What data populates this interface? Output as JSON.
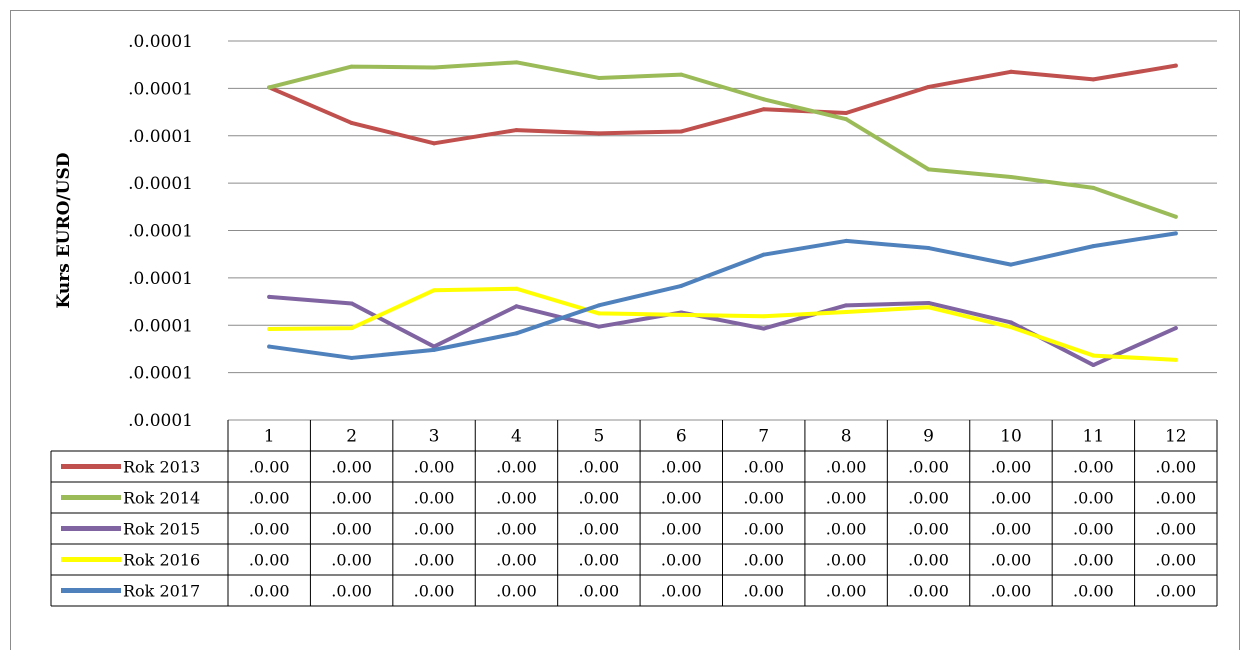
{
  "chart_data": {
    "type": "line",
    "title": "",
    "xlabel": "",
    "ylabel": "Kurs EURO/USD",
    "categories": [
      "1",
      "2",
      "3",
      "4",
      "5",
      "6",
      "7",
      "8",
      "9",
      "10",
      "11",
      "12"
    ],
    "y_tick_labels": [
      ".0.0001",
      ".0.0001",
      ".0.0001",
      ".0.0001",
      ".0.0001",
      ".0.0001",
      ".0.0001",
      ".0.0001",
      ".0.0001"
    ],
    "ylim": [
      0,
      8
    ],
    "grid": true,
    "legend": "data table below chart",
    "series": [
      {
        "name": "Rok 2013",
        "color": "#c0504d",
        "values": [
          7.02,
          6.27,
          5.84,
          6.12,
          6.05,
          6.09,
          6.56,
          6.48,
          7.03,
          7.35,
          7.19,
          7.48
        ],
        "table_values": [
          ".0.00",
          ".0.00",
          ".0.00",
          ".0.00",
          ".0.00",
          ".0.00",
          ".0.00",
          ".0.00",
          ".0.00",
          ".0.00",
          ".0.00",
          ".0.00"
        ]
      },
      {
        "name": "Rok 2014",
        "color": "#9bbb59",
        "values": [
          7.02,
          7.46,
          7.44,
          7.55,
          7.22,
          7.29,
          6.77,
          6.35,
          5.29,
          5.13,
          4.9,
          4.29
        ],
        "table_values": [
          ".0.00",
          ".0.00",
          ".0.00",
          ".0.00",
          ".0.00",
          ".0.00",
          ".0.00",
          ".0.00",
          ".0.00",
          ".0.00",
          ".0.00",
          ".0.00"
        ]
      },
      {
        "name": "Rok 2015",
        "color": "#8064a2",
        "values": [
          2.6,
          2.46,
          1.55,
          2.4,
          1.97,
          2.27,
          1.93,
          2.42,
          2.47,
          2.06,
          1.16,
          1.94
        ],
        "table_values": [
          ".0.00",
          ".0.00",
          ".0.00",
          ".0.00",
          ".0.00",
          ".0.00",
          ".0.00",
          ".0.00",
          ".0.00",
          ".0.00",
          ".0.00",
          ".0.00"
        ]
      },
      {
        "name": "Rok 2016",
        "color": "#ffff00",
        "values": [
          1.92,
          1.94,
          2.74,
          2.77,
          2.25,
          2.22,
          2.19,
          2.28,
          2.38,
          1.96,
          1.36,
          1.27
        ],
        "table_values": [
          ".0.00",
          ".0.00",
          ".0.00",
          ".0.00",
          ".0.00",
          ".0.00",
          ".0.00",
          ".0.00",
          ".0.00",
          ".0.00",
          ".0.00",
          ".0.00"
        ]
      },
      {
        "name": "Rok 2017",
        "color": "#4f81bd",
        "values": [
          1.55,
          1.31,
          1.48,
          1.83,
          2.42,
          2.83,
          3.49,
          3.78,
          3.63,
          3.28,
          3.67,
          3.94
        ],
        "table_values": [
          ".0.00",
          ".0.00",
          ".0.00",
          ".0.00",
          ".0.00",
          ".0.00",
          ".0.00",
          ".0.00",
          ".0.00",
          ".0.00",
          ".0.00",
          ".0.00"
        ]
      }
    ]
  }
}
